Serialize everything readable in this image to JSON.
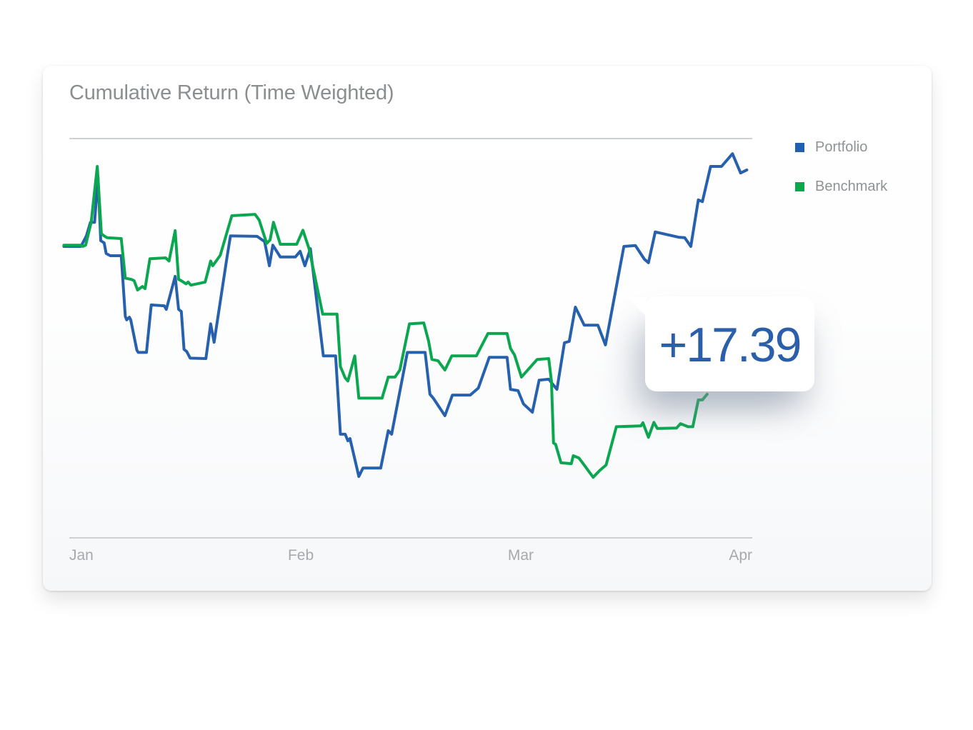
{
  "card": {
    "title": "Cumulative Return (Time Weighted)"
  },
  "tooltip": {
    "value": "+17.39",
    "series": "Portfolio",
    "text_color": "#2b5fa9"
  },
  "legend": {
    "position": "top-right",
    "items": [
      {
        "label": "Portfolio",
        "color": "#2160AE"
      },
      {
        "label": "Benchmark",
        "color": "#0AA64C"
      }
    ]
  },
  "colors": {
    "title_text": "#8b8e91",
    "axis_label_text": "#a7aaad",
    "axis_line": "#ced1d4",
    "portfolio_line": "#2761AD",
    "benchmark_line": "#0BA750"
  },
  "chart_data": {
    "type": "line",
    "title": "Cumulative Return (Time Weighted)",
    "grid": false,
    "legend_position": "top-right",
    "annotation": {
      "text": "+17.39",
      "series": "Portfolio"
    },
    "x_axis": {
      "unit": "months",
      "ticks": [
        {
          "label": "Jan",
          "t": 0,
          "anchor": "start"
        },
        {
          "label": "Feb",
          "t": 33.9,
          "anchor": "middle"
        },
        {
          "label": "Mar",
          "t": 66.1,
          "anchor": "middle"
        },
        {
          "label": "Apr",
          "t": 100,
          "anchor": "end"
        }
      ]
    },
    "y_axis": {
      "labels_visible": false,
      "range": [
        -66.6,
        24.7
      ],
      "unit": "percent (estimated)"
    },
    "series": [
      {
        "name": "Portfolio",
        "color": "#2761AD",
        "points": [
          [
            -0.8,
            0
          ],
          [
            0,
            0
          ],
          [
            1.7,
            0
          ],
          [
            2.5,
            2.4
          ],
          [
            3.1,
            5.5
          ],
          [
            3.7,
            5.5
          ],
          [
            4.2,
            15.8
          ],
          [
            4.6,
            1.3
          ],
          [
            5.1,
            0.8
          ],
          [
            5.4,
            -1.6
          ],
          [
            6,
            -2.1
          ],
          [
            7.6,
            -2.1
          ],
          [
            8.2,
            -15.9
          ],
          [
            8.4,
            -16.7
          ],
          [
            8.8,
            -16.1
          ],
          [
            9,
            -16.7
          ],
          [
            9.9,
            -23.6
          ],
          [
            10.1,
            -24.1
          ],
          [
            11.3,
            -24.1
          ],
          [
            12,
            -13.3
          ],
          [
            13.9,
            -13.5
          ],
          [
            14.2,
            -14.3
          ],
          [
            15.5,
            -6.8
          ],
          [
            16,
            -14.3
          ],
          [
            16.4,
            -14.8
          ],
          [
            16.8,
            -23.4
          ],
          [
            17.2,
            -23.9
          ],
          [
            17.7,
            -25.4
          ],
          [
            20,
            -25.5
          ],
          [
            20.7,
            -17.6
          ],
          [
            21.2,
            -21.8
          ],
          [
            23.1,
            -2.4
          ],
          [
            23.6,
            2.4
          ],
          [
            27.5,
            2.3
          ],
          [
            28.6,
            1.1
          ],
          [
            29.3,
            -4.4
          ],
          [
            29.8,
            0.3
          ],
          [
            30.9,
            -2.4
          ],
          [
            33.1,
            -2.4
          ],
          [
            33.8,
            -1.1
          ],
          [
            34.5,
            -4.4
          ],
          [
            35.3,
            -0.5
          ],
          [
            37.2,
            -24.9
          ],
          [
            39,
            -24.9
          ],
          [
            39.7,
            -42.7
          ],
          [
            40.4,
            -42.7
          ],
          [
            40.8,
            -44.2
          ],
          [
            41.1,
            -43.7
          ],
          [
            42.4,
            -52.3
          ],
          [
            43,
            -50.4
          ],
          [
            45.6,
            -50.4
          ],
          [
            46.7,
            -41.9
          ],
          [
            47.2,
            -42.7
          ],
          [
            49.5,
            -24.1
          ],
          [
            52.1,
            -24.1
          ],
          [
            52.8,
            -33.6
          ],
          [
            53.3,
            -34.5
          ],
          [
            55,
            -38.5
          ],
          [
            56.1,
            -33.8
          ],
          [
            58.7,
            -33.8
          ],
          [
            59.9,
            -32.2
          ],
          [
            61.5,
            -25.2
          ],
          [
            64.1,
            -25.2
          ],
          [
            64.6,
            -32.5
          ],
          [
            65.7,
            -32.8
          ],
          [
            66.5,
            -35.8
          ],
          [
            67.8,
            -37.7
          ],
          [
            68.8,
            -30.4
          ],
          [
            70.2,
            -30.2
          ],
          [
            71.4,
            -32.5
          ],
          [
            72.5,
            -21.9
          ],
          [
            73.2,
            -21.6
          ],
          [
            74.1,
            -13.8
          ],
          [
            74.6,
            -15.4
          ],
          [
            75.4,
            -17.9
          ],
          [
            77.4,
            -17.9
          ],
          [
            78.5,
            -22.4
          ],
          [
            81.2,
            0
          ],
          [
            82.9,
            0.2
          ],
          [
            84.2,
            -2.9
          ],
          [
            84.8,
            -3.7
          ],
          [
            85.8,
            3.3
          ],
          [
            89.2,
            2.1
          ],
          [
            90.1,
            2
          ],
          [
            91,
            0
          ],
          [
            92.1,
            10.6
          ],
          [
            92.7,
            10.2
          ],
          [
            93.9,
            18.2
          ],
          [
            95.5,
            18.2
          ],
          [
            97.1,
            21.1
          ],
          [
            98.3,
            16.7
          ],
          [
            99.2,
            17.4
          ]
        ]
      },
      {
        "name": "Benchmark",
        "color": "#0BA750",
        "points": [
          [
            -0.8,
            0.3
          ],
          [
            0,
            0.3
          ],
          [
            1.6,
            0.3
          ],
          [
            2,
            0
          ],
          [
            2.4,
            0.3
          ],
          [
            3.2,
            5.5
          ],
          [
            4.1,
            18.2
          ],
          [
            4.7,
            2.9
          ],
          [
            5.1,
            2.4
          ],
          [
            5.5,
            2
          ],
          [
            7.6,
            1.8
          ],
          [
            8.2,
            -7.2
          ],
          [
            9.1,
            -7.5
          ],
          [
            9.5,
            -7.8
          ],
          [
            10,
            -9.9
          ],
          [
            10.7,
            -9.1
          ],
          [
            11.1,
            -9.6
          ],
          [
            11.8,
            -2.8
          ],
          [
            14.1,
            -2.6
          ],
          [
            14.6,
            -3.3
          ],
          [
            15.5,
            3.6
          ],
          [
            16,
            -7.5
          ],
          [
            16.4,
            -7.8
          ],
          [
            17.1,
            -8.5
          ],
          [
            17.4,
            -8.1
          ],
          [
            17.8,
            -8.8
          ],
          [
            19.9,
            -8.1
          ],
          [
            20.7,
            -3.3
          ],
          [
            21,
            -4.4
          ],
          [
            22.1,
            -2
          ],
          [
            23.8,
            7
          ],
          [
            27.2,
            7.3
          ],
          [
            27.8,
            6
          ],
          [
            28.9,
            0.7
          ],
          [
            29.4,
            1.5
          ],
          [
            29.9,
            5.5
          ],
          [
            30.9,
            0.5
          ],
          [
            33.3,
            0.5
          ],
          [
            34.2,
            3.7
          ],
          [
            35.1,
            -0.5
          ],
          [
            37.1,
            -15.4
          ],
          [
            39.2,
            -15.4
          ],
          [
            39.7,
            -27.3
          ],
          [
            40.4,
            -29.9
          ],
          [
            40.8,
            -30.6
          ],
          [
            41.8,
            -24.9
          ],
          [
            42.4,
            -34.5
          ],
          [
            45.8,
            -34.5
          ],
          [
            46.7,
            -29.7
          ],
          [
            47.7,
            -29.7
          ],
          [
            48.4,
            -28.1
          ],
          [
            49.8,
            -17.6
          ],
          [
            51.9,
            -17.4
          ],
          [
            52.6,
            -21.5
          ],
          [
            53.1,
            -25.7
          ],
          [
            54,
            -26
          ],
          [
            55,
            -28.1
          ],
          [
            56,
            -24.9
          ],
          [
            59.6,
            -24.9
          ],
          [
            61.3,
            -19.8
          ],
          [
            64.1,
            -19.8
          ],
          [
            64.6,
            -23.2
          ],
          [
            65.2,
            -24.7
          ],
          [
            66.2,
            -29.7
          ],
          [
            68.5,
            -25.7
          ],
          [
            70.2,
            -25.5
          ],
          [
            70.6,
            -30.6
          ],
          [
            70.9,
            -44.7
          ],
          [
            71.2,
            -45
          ],
          [
            72,
            -49.2
          ],
          [
            73.5,
            -49.4
          ],
          [
            73.8,
            -47.6
          ],
          [
            74.6,
            -48.1
          ],
          [
            75.1,
            -49.1
          ],
          [
            76.7,
            -52.5
          ],
          [
            77.7,
            -50.9
          ],
          [
            78.6,
            -49.7
          ],
          [
            80.1,
            -41
          ],
          [
            83.7,
            -40.8
          ],
          [
            84,
            -40.1
          ],
          [
            84.8,
            -43.4
          ],
          [
            85.6,
            -40
          ],
          [
            86.1,
            -41.4
          ],
          [
            88.9,
            -41.3
          ],
          [
            89.5,
            -40.3
          ],
          [
            90.6,
            -41
          ],
          [
            91.3,
            -41
          ],
          [
            92.1,
            -34.9
          ],
          [
            92.7,
            -34.9
          ],
          [
            93.4,
            -33.6
          ]
        ]
      }
    ]
  }
}
